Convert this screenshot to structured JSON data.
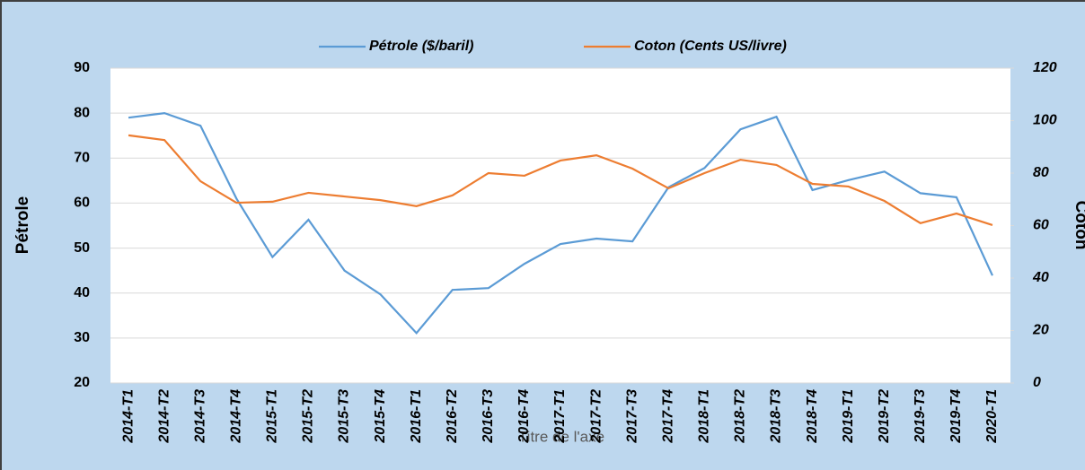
{
  "chart_data": {
    "type": "line",
    "categories": [
      "2014-T1",
      "2014-T2",
      "2014-T3",
      "2014-T4",
      "2015-T1",
      "2015-T2",
      "2015-T3",
      "2015-T4",
      "2016-T1",
      "2016-T2",
      "2016-T3",
      "2016-T4",
      "2017-T1",
      "2017-T2",
      "2017-T3",
      "2017-T4",
      "2018-T1",
      "2018-T2",
      "2018-T3",
      "2018-T4",
      "2019-T1",
      "2019-T2",
      "2019-T3",
      "2019-T4",
      "2020-T1"
    ],
    "series": [
      {
        "name": "Pétrole ($/baril)",
        "color": "#5b9bd5",
        "values": [
          79,
          80,
          77.2,
          61,
          48,
          56.3,
          45,
          39.7,
          31.1,
          40.7,
          41.1,
          46.5,
          50.9,
          52.1,
          51.5,
          63.5,
          67.8,
          76.4,
          79.2,
          62.9,
          65.1,
          67,
          62.2,
          61.3,
          43.9
        ]
      },
      {
        "name": "Coton (Cents US/livre)",
        "color": "#ed7d31",
        "axis": "y2",
        "values": [
          94.4,
          92.6,
          76.9,
          68.7,
          69.1,
          72.5,
          71.1,
          69.7,
          67.4,
          71.5,
          80,
          79,
          84.8,
          86.8,
          81.7,
          74.2,
          80,
          85.1,
          83.1,
          75.9,
          74.9,
          69.4,
          60.9,
          64.6,
          60.2
        ]
      }
    ],
    "ylabel": "Pétrole",
    "y2label": "Coton",
    "xlabel": "Titre de l'axe",
    "ylim": [
      20,
      90
    ],
    "yticks": [
      20,
      30,
      40,
      50,
      60,
      70,
      80,
      90
    ],
    "y2lim": [
      0,
      120
    ],
    "y2ticks": [
      0,
      20,
      40,
      60,
      80,
      100,
      120
    ],
    "grid": true,
    "legend": "top"
  }
}
